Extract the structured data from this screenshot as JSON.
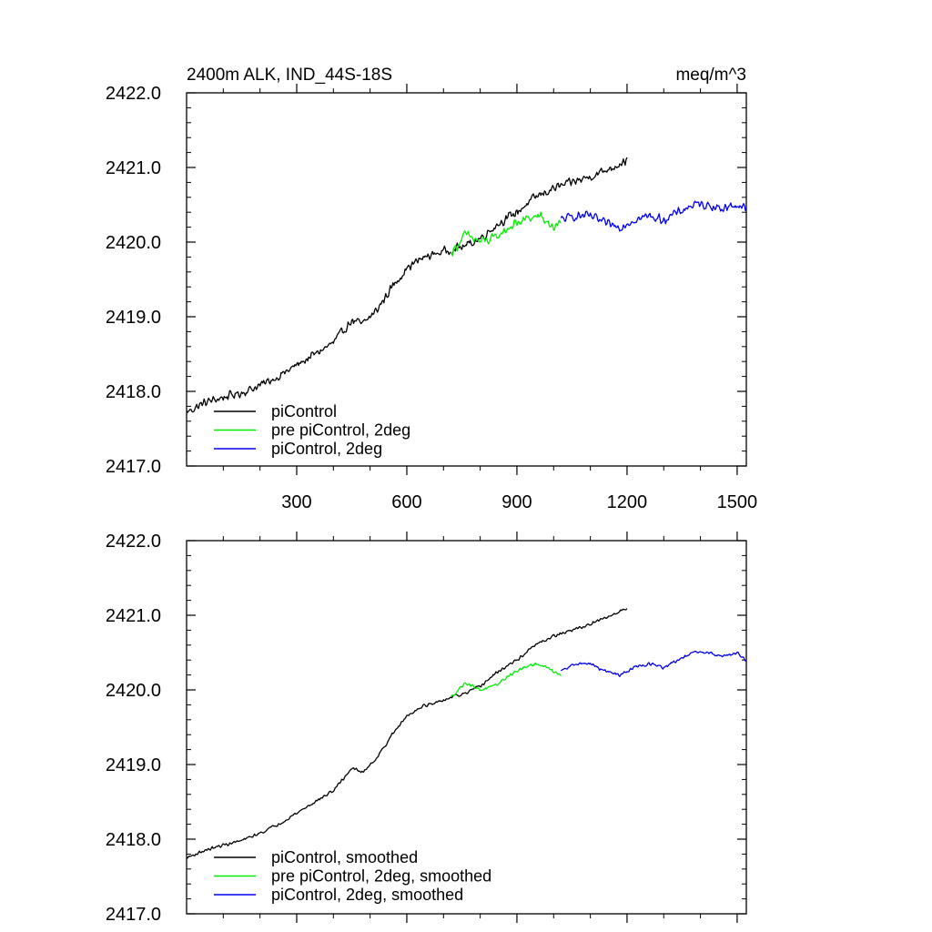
{
  "chart_data": [
    {
      "type": "line",
      "title": "2400m ALK, IND_44S-18S",
      "units": "meq/m^3",
      "xlim": [
        0,
        1525
      ],
      "ylim": [
        2417.0,
        2422.0
      ],
      "x_ticks": [
        300,
        600,
        900,
        1200,
        1500
      ],
      "x_tick_labels": [
        "300",
        "600",
        "900",
        "1200",
        "1500"
      ],
      "show_x_tick_labels": true,
      "y_ticks": [
        2417.0,
        2418.0,
        2419.0,
        2420.0,
        2421.0,
        2422.0
      ],
      "y_tick_labels": [
        "2417.0",
        "2418.0",
        "2419.0",
        "2420.0",
        "2421.0",
        "2422.0"
      ],
      "legend_position": "bottom-left",
      "series": [
        {
          "name": "piControl",
          "color": "#000000",
          "noise": 0.07,
          "x": [
            0,
            50,
            100,
            150,
            200,
            250,
            300,
            350,
            400,
            450,
            480,
            520,
            560,
            600,
            640,
            680,
            720,
            760,
            800,
            850,
            900,
            950,
            1000,
            1050,
            1100,
            1150,
            1200
          ],
          "values": [
            2417.72,
            2417.85,
            2417.92,
            2417.98,
            2418.08,
            2418.2,
            2418.35,
            2418.5,
            2418.65,
            2418.95,
            2418.9,
            2419.1,
            2419.4,
            2419.65,
            2419.78,
            2419.85,
            2419.9,
            2419.95,
            2420.05,
            2420.25,
            2420.4,
            2420.6,
            2420.72,
            2420.8,
            2420.88,
            2420.98,
            2421.1
          ]
        },
        {
          "name": "pre piControl, 2deg",
          "color": "#00ee00",
          "noise": 0.08,
          "x": [
            720,
            760,
            800,
            840,
            880,
            920,
            960,
            1000,
            1020
          ],
          "values": [
            2419.85,
            2420.1,
            2420.0,
            2420.05,
            2420.2,
            2420.3,
            2420.35,
            2420.2,
            2420.25
          ]
        },
        {
          "name": "piControl, 2deg",
          "color": "#0000ee",
          "noise": 0.07,
          "x": [
            1020,
            1060,
            1100,
            1140,
            1180,
            1220,
            1260,
            1300,
            1340,
            1380,
            1420,
            1460,
            1500,
            1525
          ],
          "values": [
            2420.3,
            2420.35,
            2420.35,
            2420.25,
            2420.2,
            2420.3,
            2420.35,
            2420.3,
            2420.4,
            2420.5,
            2420.5,
            2420.45,
            2420.5,
            2420.45
          ]
        }
      ]
    },
    {
      "type": "line",
      "title": "",
      "units": "",
      "xlim": [
        0,
        1525
      ],
      "ylim": [
        2417.0,
        2422.0
      ],
      "x_ticks": [
        300,
        600,
        900,
        1200,
        1500
      ],
      "x_tick_labels": [],
      "show_x_tick_labels": false,
      "y_ticks": [
        2417.0,
        2418.0,
        2419.0,
        2420.0,
        2421.0,
        2422.0
      ],
      "y_tick_labels": [
        "2417.0",
        "2418.0",
        "2419.0",
        "2420.0",
        "2421.0",
        "2422.0"
      ],
      "legend_position": "bottom-left",
      "series": [
        {
          "name": "piControl, smoothed",
          "color": "#000000",
          "noise": 0.025,
          "x": [
            0,
            50,
            100,
            150,
            200,
            250,
            300,
            350,
            400,
            450,
            480,
            520,
            560,
            600,
            640,
            680,
            720,
            760,
            800,
            850,
            900,
            950,
            1000,
            1050,
            1100,
            1150,
            1200
          ],
          "values": [
            2417.75,
            2417.85,
            2417.92,
            2417.98,
            2418.08,
            2418.2,
            2418.35,
            2418.5,
            2418.65,
            2418.95,
            2418.9,
            2419.1,
            2419.4,
            2419.65,
            2419.78,
            2419.82,
            2419.9,
            2419.95,
            2420.05,
            2420.25,
            2420.4,
            2420.6,
            2420.72,
            2420.8,
            2420.88,
            2420.98,
            2421.1
          ]
        },
        {
          "name": "pre piControl, 2deg, smoothed",
          "color": "#00ee00",
          "noise": 0.025,
          "x": [
            720,
            760,
            800,
            840,
            880,
            920,
            960,
            1000,
            1020
          ],
          "values": [
            2419.9,
            2420.1,
            2420.0,
            2420.05,
            2420.2,
            2420.3,
            2420.35,
            2420.25,
            2420.2
          ]
        },
        {
          "name": "piControl, 2deg, smoothed",
          "color": "#0000ee",
          "noise": 0.025,
          "x": [
            1020,
            1060,
            1100,
            1140,
            1180,
            1220,
            1260,
            1300,
            1340,
            1380,
            1420,
            1460,
            1500,
            1525
          ],
          "values": [
            2420.25,
            2420.35,
            2420.35,
            2420.25,
            2420.2,
            2420.3,
            2420.35,
            2420.3,
            2420.4,
            2420.5,
            2420.5,
            2420.45,
            2420.5,
            2420.4
          ]
        }
      ]
    }
  ]
}
